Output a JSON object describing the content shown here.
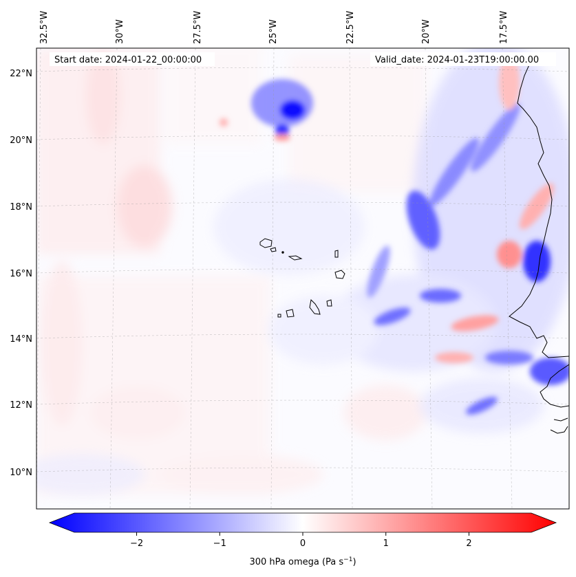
{
  "header": {
    "start_date": "Start date: 2024-01-22_00:00:00",
    "valid_date": "Valid_date: 2024-01-23T19:00:00.00"
  },
  "map": {
    "lon_ticks": [
      "32.5°W",
      "30°W",
      "27.5°W",
      "25°W",
      "22.5°W",
      "20°W",
      "17.5°W"
    ],
    "lat_ticks": [
      "22°N",
      "20°N",
      "18°N",
      "16°N",
      "14°N",
      "12°N",
      "10°N"
    ],
    "extent": {
      "lon_min": -32.7,
      "lon_max": -15.6,
      "lat_min": 8.9,
      "lat_max": 22.8
    },
    "gridlines": true
  },
  "colorbar": {
    "label": "300 hPa omega (Pa s",
    "label_sup": "−1",
    "label_end": ")",
    "ticks": [
      "−2",
      "−1",
      "0",
      "1",
      "2"
    ],
    "tick_values": [
      -2,
      -1,
      0,
      1,
      2
    ],
    "range": [
      -2.75,
      2.75
    ],
    "colors": {
      "low": "#0000ff",
      "mid": "#ffffff",
      "high": "#ff0000"
    }
  },
  "colors": {
    "coastline": "#000000",
    "grid": "#999999"
  }
}
